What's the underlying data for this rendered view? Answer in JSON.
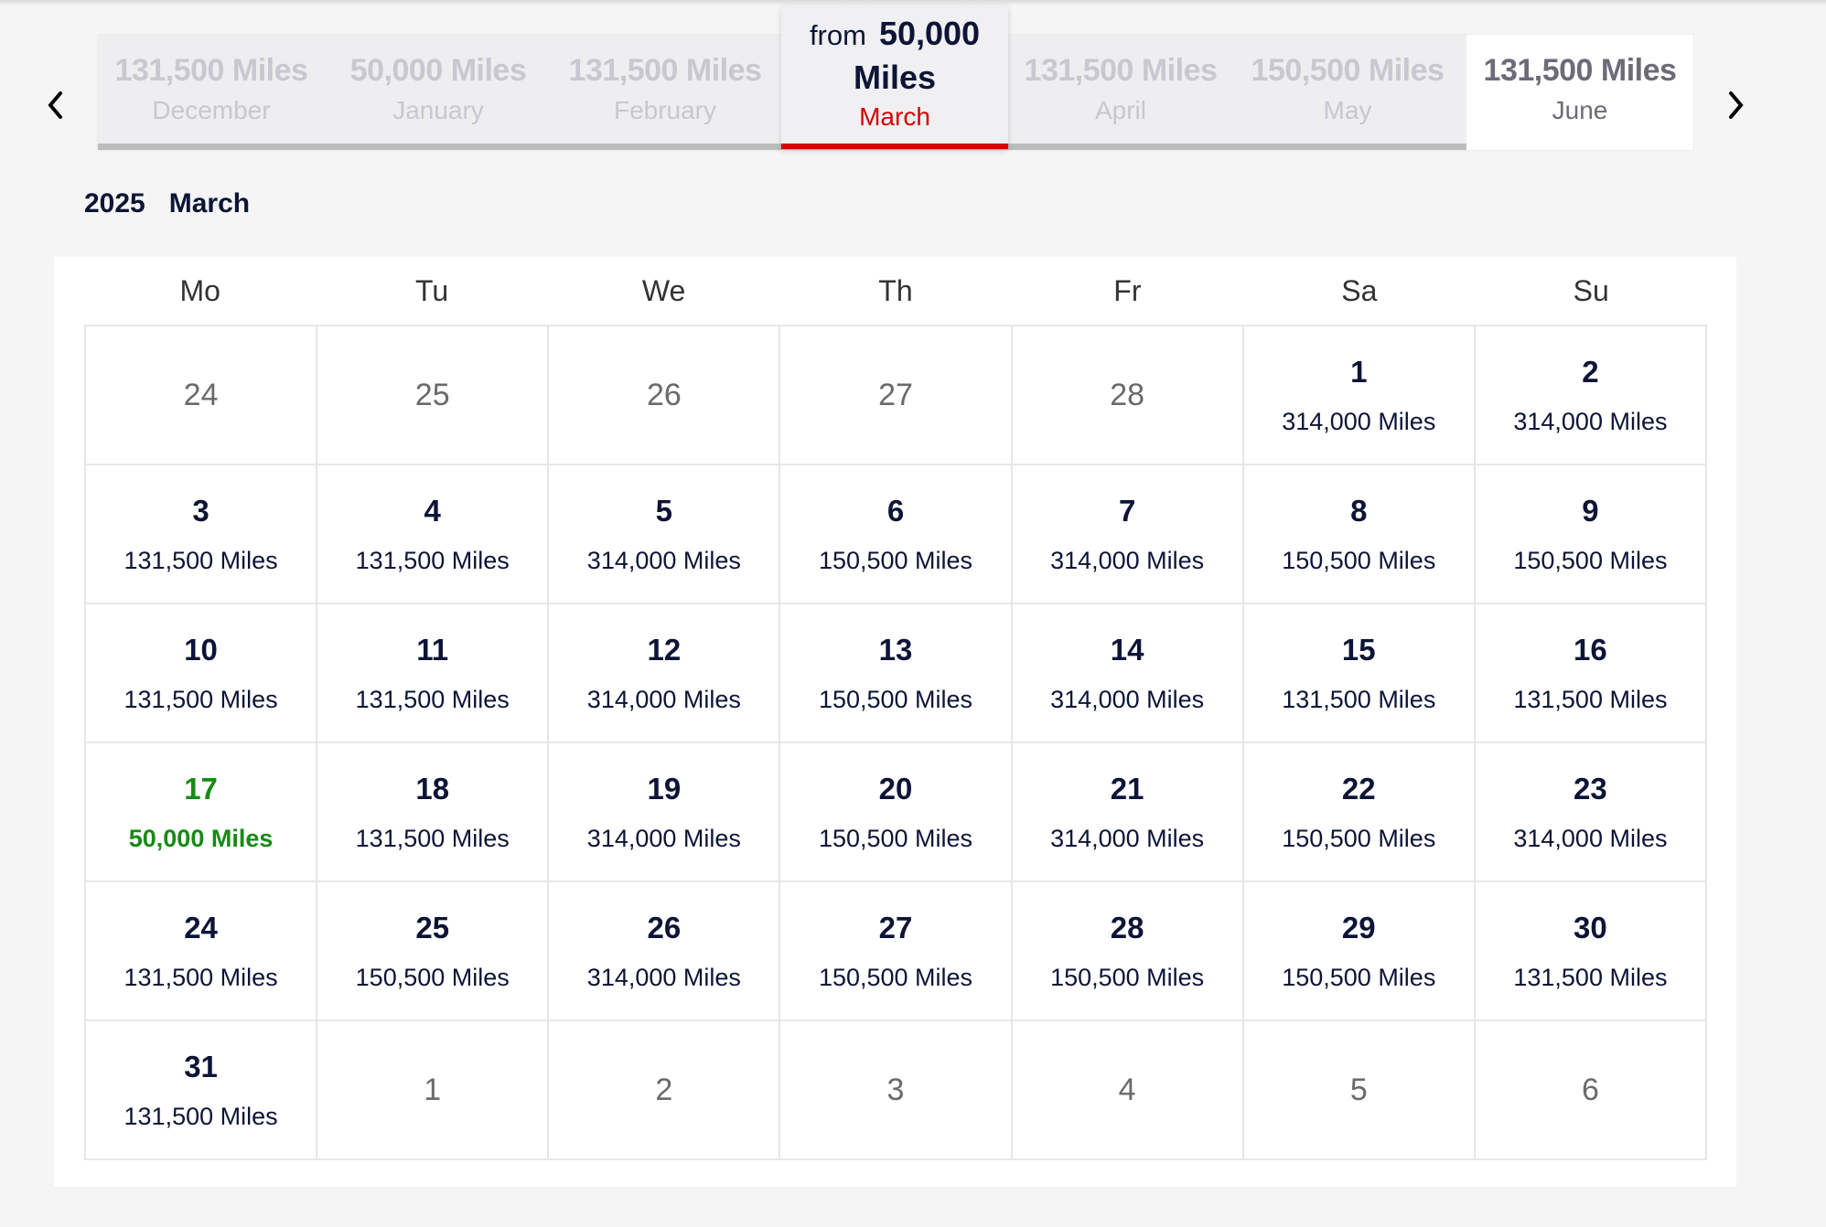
{
  "month_tabs": [
    {
      "miles": "131,500 Miles",
      "month": "December"
    },
    {
      "miles": "50,000 Miles",
      "month": "January"
    },
    {
      "miles": "131,500 Miles",
      "month": "February"
    },
    {
      "miles": "131,500 Miles",
      "month": "April"
    },
    {
      "miles": "150,500 Miles",
      "month": "May"
    },
    {
      "miles": "131,500 Miles",
      "month": "June"
    }
  ],
  "active_tab": {
    "prefix": "from",
    "amount": "50,000",
    "unit": "Miles",
    "month": "March"
  },
  "heading": {
    "year": "2025",
    "month": "March"
  },
  "weekdays": [
    "Mo",
    "Tu",
    "We",
    "Th",
    "Fr",
    "Sa",
    "Su"
  ],
  "colors": {
    "accent": "#d50000",
    "cheapest": "#178a17",
    "text": "#0d1436"
  },
  "days": [
    {
      "d": "24",
      "other": true
    },
    {
      "d": "25",
      "other": true
    },
    {
      "d": "26",
      "other": true
    },
    {
      "d": "27",
      "other": true
    },
    {
      "d": "28",
      "other": true
    },
    {
      "d": "1",
      "p": "314,000 Miles"
    },
    {
      "d": "2",
      "p": "314,000 Miles"
    },
    {
      "d": "3",
      "p": "131,500 Miles"
    },
    {
      "d": "4",
      "p": "131,500 Miles"
    },
    {
      "d": "5",
      "p": "314,000 Miles"
    },
    {
      "d": "6",
      "p": "150,500 Miles"
    },
    {
      "d": "7",
      "p": "314,000 Miles"
    },
    {
      "d": "8",
      "p": "150,500 Miles"
    },
    {
      "d": "9",
      "p": "150,500 Miles"
    },
    {
      "d": "10",
      "p": "131,500 Miles"
    },
    {
      "d": "11",
      "p": "131,500 Miles"
    },
    {
      "d": "12",
      "p": "314,000 Miles"
    },
    {
      "d": "13",
      "p": "150,500 Miles"
    },
    {
      "d": "14",
      "p": "314,000 Miles"
    },
    {
      "d": "15",
      "p": "131,500 Miles"
    },
    {
      "d": "16",
      "p": "131,500 Miles"
    },
    {
      "d": "17",
      "p": "50,000 Miles",
      "cheapest": true
    },
    {
      "d": "18",
      "p": "131,500 Miles"
    },
    {
      "d": "19",
      "p": "314,000 Miles"
    },
    {
      "d": "20",
      "p": "150,500 Miles"
    },
    {
      "d": "21",
      "p": "314,000 Miles"
    },
    {
      "d": "22",
      "p": "150,500 Miles"
    },
    {
      "d": "23",
      "p": "314,000 Miles"
    },
    {
      "d": "24",
      "p": "131,500 Miles"
    },
    {
      "d": "25",
      "p": "150,500 Miles"
    },
    {
      "d": "26",
      "p": "314,000 Miles"
    },
    {
      "d": "27",
      "p": "150,500 Miles"
    },
    {
      "d": "28",
      "p": "150,500 Miles"
    },
    {
      "d": "29",
      "p": "150,500 Miles"
    },
    {
      "d": "30",
      "p": "131,500 Miles"
    },
    {
      "d": "31",
      "p": "131,500 Miles"
    },
    {
      "d": "1",
      "other": true
    },
    {
      "d": "2",
      "other": true
    },
    {
      "d": "3",
      "other": true
    },
    {
      "d": "4",
      "other": true
    },
    {
      "d": "5",
      "other": true
    },
    {
      "d": "6",
      "other": true
    }
  ]
}
